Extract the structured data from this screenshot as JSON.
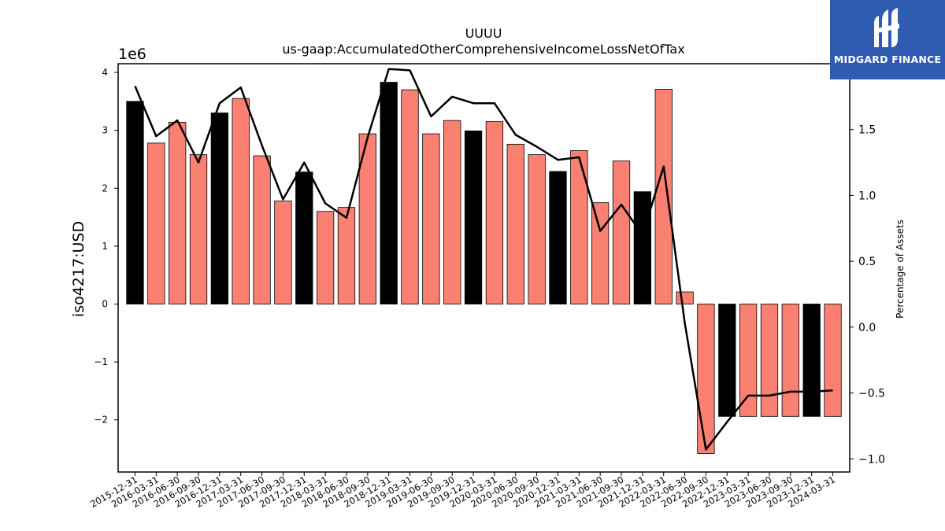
{
  "chart_data": {
    "type": "bar",
    "title": "UUUU",
    "subtitle": "us-gaap:AccumulatedOtherComprehensiveIncomeLossNetOfTax",
    "ylabel": "iso4217:USD",
    "y_multiplier_label": "1e6",
    "y2label": "Percentage of Assets",
    "ylim": [
      -2.9,
      4.15
    ],
    "y2lim": [
      -1.1,
      2.0
    ],
    "yticks": [
      -2,
      -1,
      0,
      1,
      2,
      3,
      4
    ],
    "y2ticks": [
      -1.0,
      -0.5,
      0.0,
      0.5,
      1.0,
      1.5
    ],
    "categories": [
      "2015-12-31",
      "2016-03-31",
      "2016-06-30",
      "2016-09-30",
      "2016-12-31",
      "2017-03-31",
      "2017-06-30",
      "2017-09-30",
      "2017-12-31",
      "2018-03-31",
      "2018-06-30",
      "2018-09-30",
      "2018-12-31",
      "2019-03-31",
      "2019-06-30",
      "2019-09-30",
      "2019-12-31",
      "2020-03-31",
      "2020-06-30",
      "2020-09-30",
      "2020-12-31",
      "2021-03-31",
      "2021-06-30",
      "2021-09-30",
      "2021-12-31",
      "2022-03-31",
      "2022-06-30",
      "2022-09-30",
      "2022-12-31",
      "2023-03-31",
      "2023-06-30",
      "2023-09-30",
      "2023-12-31",
      "2024-03-31"
    ],
    "values": [
      3.5,
      2.78,
      3.14,
      2.58,
      3.3,
      3.55,
      2.56,
      1.78,
      2.28,
      1.6,
      1.67,
      2.94,
      3.83,
      3.7,
      2.94,
      3.17,
      2.99,
      3.15,
      2.76,
      2.58,
      2.29,
      2.65,
      1.75,
      2.47,
      1.94,
      3.71,
      0.21,
      -2.58,
      -1.94,
      -1.94,
      -1.94,
      -1.94,
      -1.94,
      -1.94
    ],
    "bar_colors": [
      "#000000",
      "#fa8072",
      "#fa8072",
      "#fa8072",
      "#000000",
      "#fa8072",
      "#fa8072",
      "#fa8072",
      "#000000",
      "#fa8072",
      "#fa8072",
      "#fa8072",
      "#000000",
      "#fa8072",
      "#fa8072",
      "#fa8072",
      "#000000",
      "#fa8072",
      "#fa8072",
      "#fa8072",
      "#000000",
      "#fa8072",
      "#fa8072",
      "#fa8072",
      "#000000",
      "#fa8072",
      "#fa8072",
      "#fa8072",
      "#000000",
      "#fa8072",
      "#fa8072",
      "#fa8072",
      "#000000",
      "#fa8072"
    ],
    "line_series": {
      "axis": "right",
      "values": [
        1.83,
        1.45,
        1.57,
        1.25,
        1.7,
        1.82,
        1.38,
        0.97,
        1.25,
        0.94,
        0.83,
        1.44,
        1.96,
        1.95,
        1.6,
        1.75,
        1.7,
        1.7,
        1.46,
        1.37,
        1.27,
        1.29,
        0.73,
        0.93,
        0.7,
        1.22,
        0.03,
        -0.93,
        -0.72,
        -0.52,
        -0.52,
        -0.49,
        -0.49,
        -0.48
      ]
    }
  },
  "logo": {
    "text": "MIDGARD FINANCE"
  }
}
